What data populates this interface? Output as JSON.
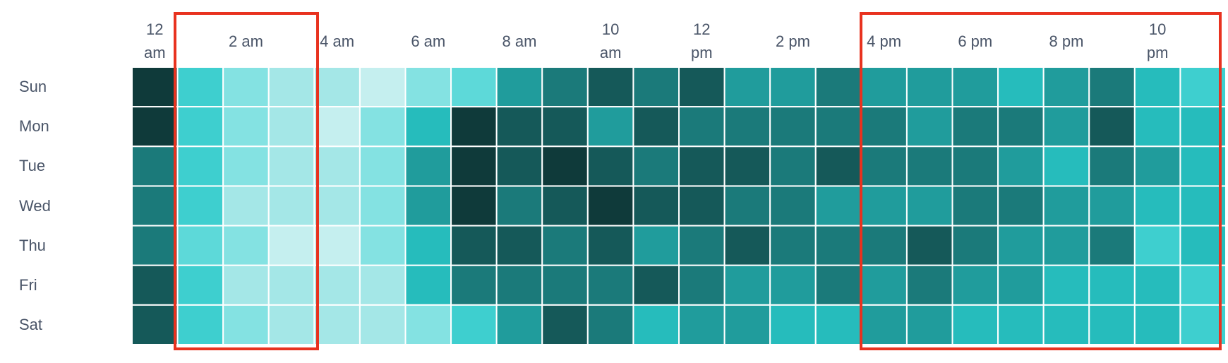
{
  "chart_data": {
    "type": "heatmap",
    "x": [
      "12\nam",
      null,
      "2 am",
      null,
      "4 am",
      null,
      "6 am",
      null,
      "8 am",
      null,
      "10\nam",
      null,
      "12\npm",
      null,
      "2 pm",
      null,
      "4 pm",
      null,
      "6 pm",
      null,
      "8 pm",
      null,
      "10\npm",
      null
    ],
    "y": [
      "Sun",
      "Mon",
      "Tue",
      "Wed",
      "Thu",
      "Fri",
      "Sat"
    ],
    "values": [
      [
        10,
        5,
        3,
        2,
        2,
        1,
        3,
        4,
        7,
        8,
        9,
        8,
        9,
        7,
        7,
        8,
        7,
        7,
        7,
        6,
        7,
        8,
        6,
        5
      ],
      [
        10,
        5,
        3,
        2,
        1,
        3,
        6,
        10,
        9,
        9,
        7,
        9,
        8,
        8,
        8,
        8,
        8,
        7,
        8,
        8,
        7,
        9,
        6,
        6
      ],
      [
        8,
        5,
        3,
        2,
        2,
        3,
        7,
        10,
        9,
        10,
        9,
        8,
        9,
        9,
        8,
        9,
        8,
        8,
        8,
        7,
        6,
        8,
        7,
        6
      ],
      [
        8,
        5,
        2,
        2,
        2,
        3,
        7,
        10,
        8,
        9,
        10,
        9,
        9,
        8,
        8,
        7,
        7,
        7,
        8,
        8,
        7,
        7,
        6,
        6
      ],
      [
        8,
        4,
        3,
        1,
        1,
        3,
        6,
        9,
        9,
        8,
        9,
        7,
        8,
        9,
        8,
        8,
        8,
        9,
        8,
        7,
        7,
        8,
        5,
        6
      ],
      [
        9,
        5,
        2,
        2,
        2,
        2,
        6,
        8,
        8,
        8,
        8,
        9,
        8,
        7,
        7,
        8,
        7,
        8,
        7,
        7,
        6,
        6,
        6,
        5
      ],
      [
        9,
        5,
        3,
        2,
        2,
        2,
        3,
        5,
        7,
        9,
        8,
        6,
        7,
        7,
        6,
        6,
        7,
        7,
        6,
        6,
        6,
        6,
        6,
        5
      ]
    ],
    "colormap": [
      "#c5efef",
      "#a4e7e7",
      "#84e2e2",
      "#5dd9d9",
      "#3ecfcf",
      "#26bcbc",
      "#209c9c",
      "#1b7a7a",
      "#155959",
      "#0f3a3a"
    ]
  }
}
